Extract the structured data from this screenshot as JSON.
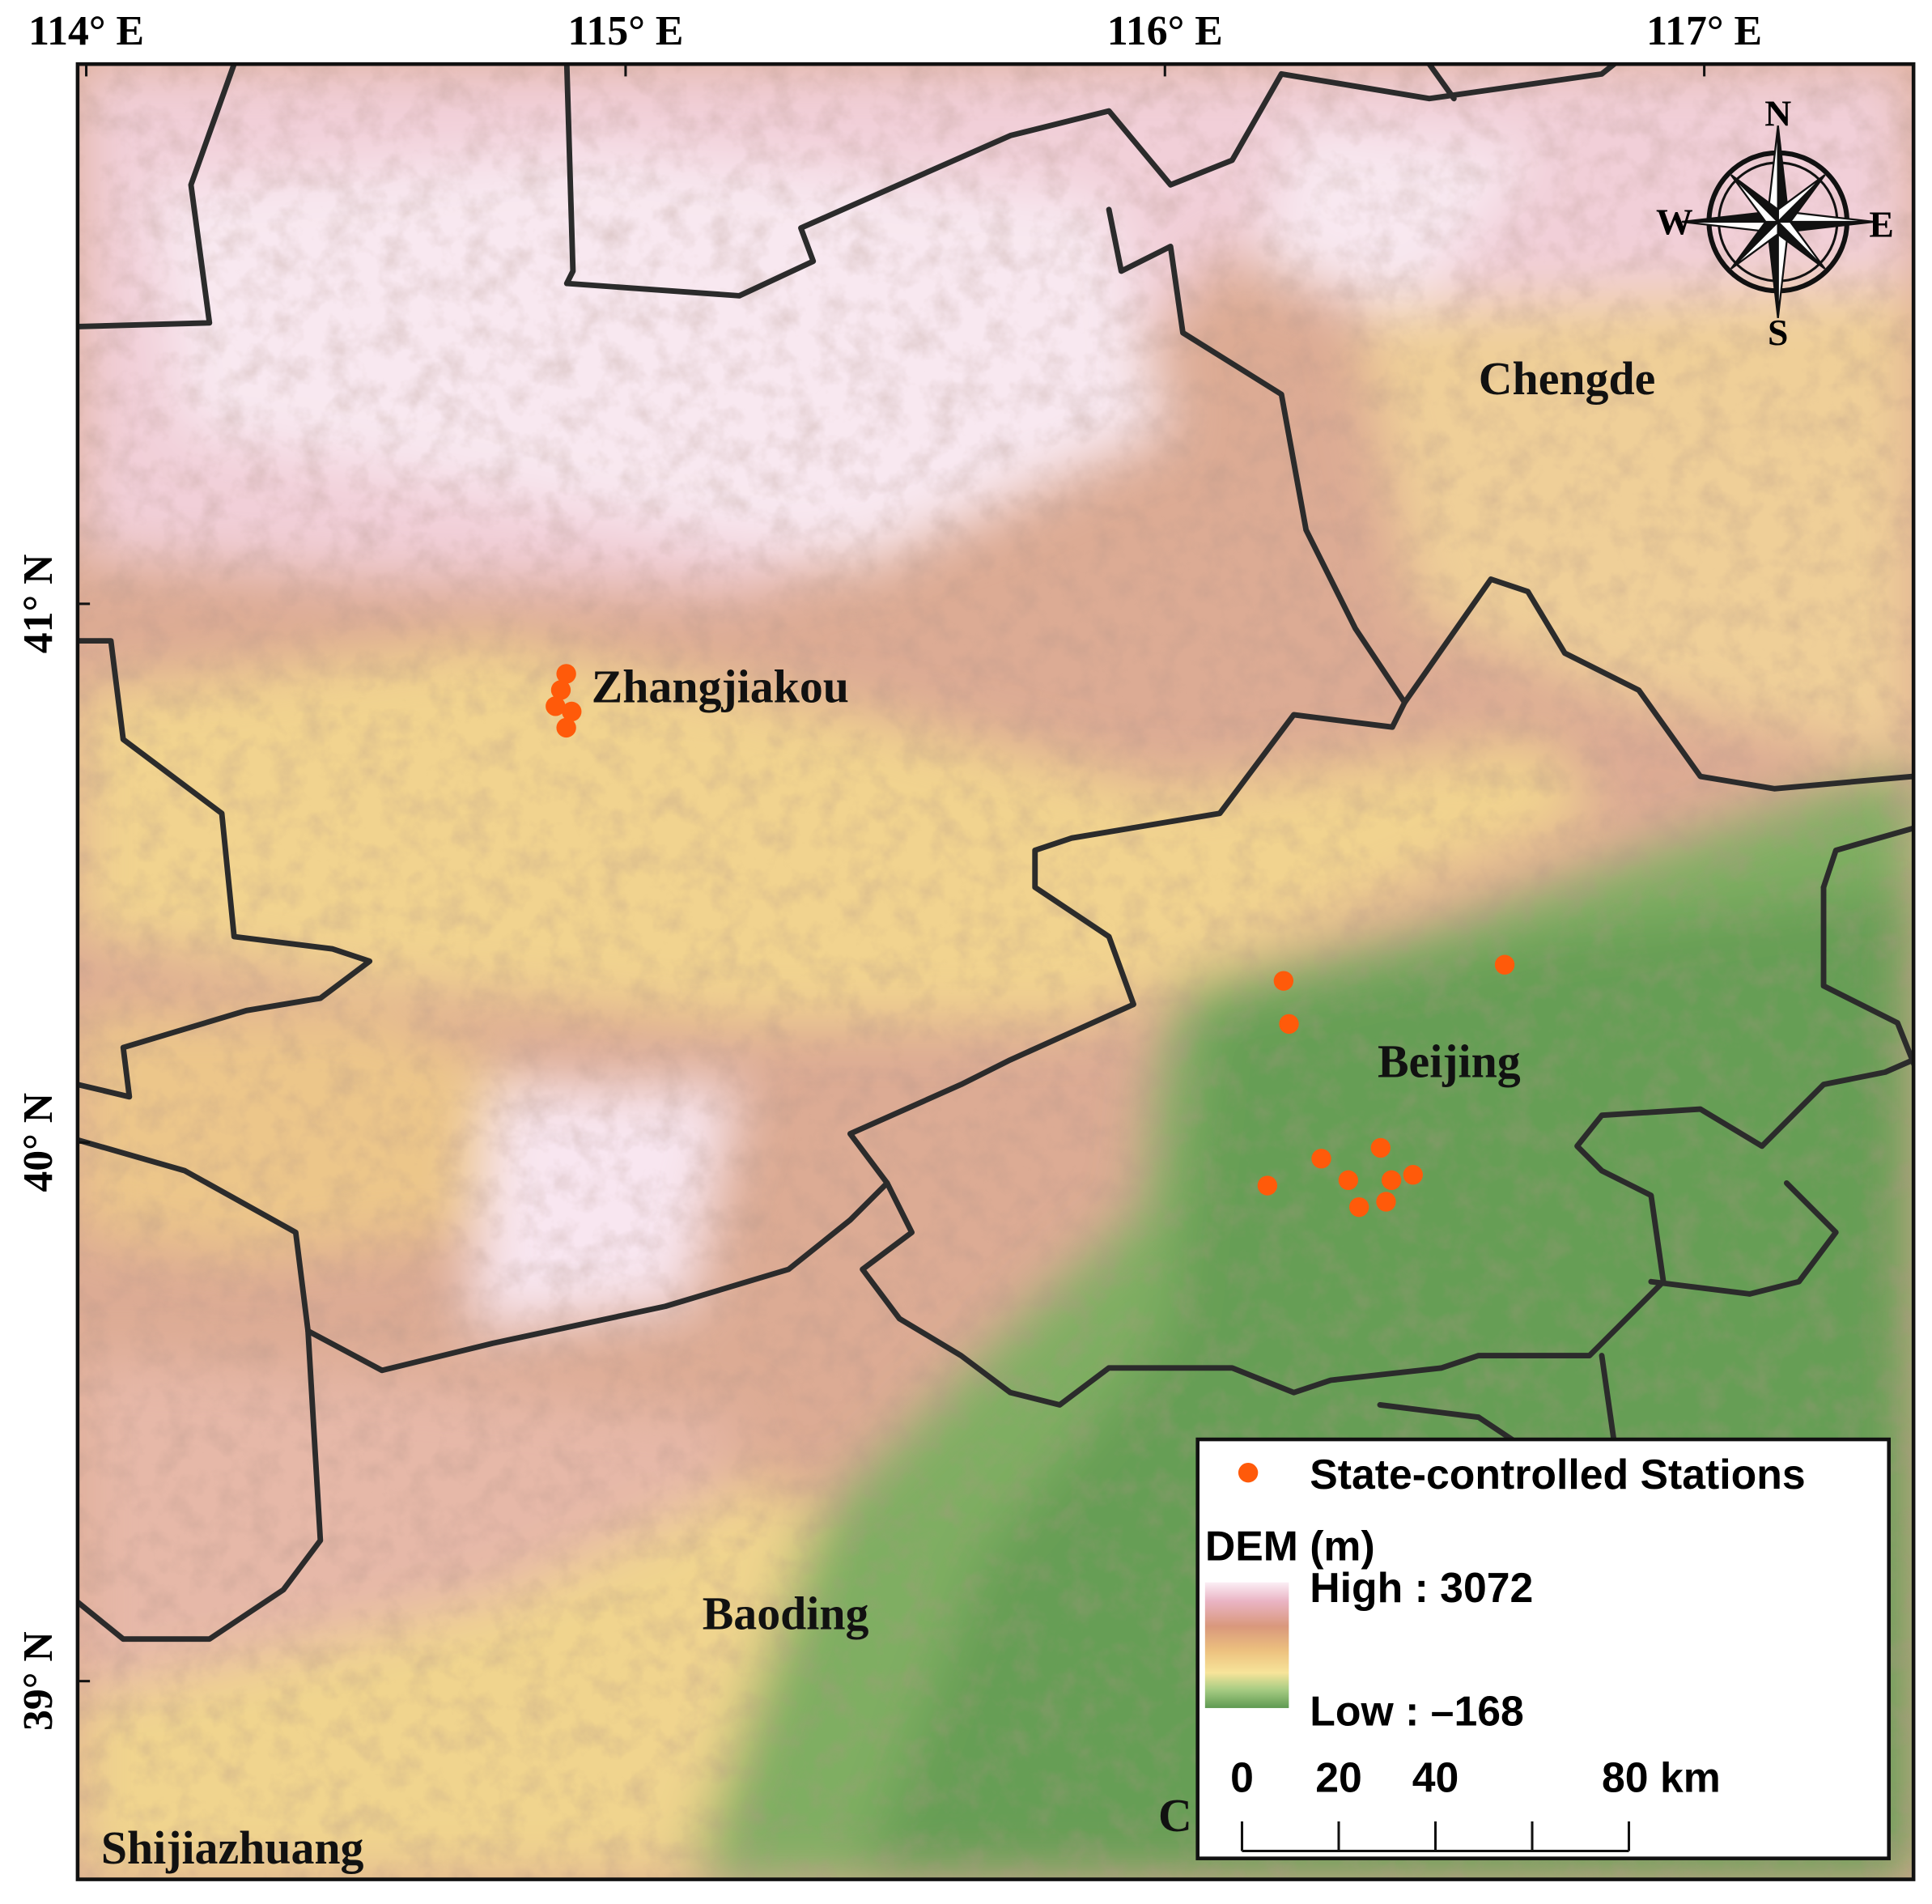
{
  "map": {
    "xlim": [
      113.984,
      117.388
    ],
    "ylim": [
      38.632,
      42.002
    ],
    "xticks": [
      {
        "value": 114,
        "label": "114° E"
      },
      {
        "value": 115,
        "label": "115° E"
      },
      {
        "value": 116,
        "label": "116° E"
      },
      {
        "value": 117,
        "label": "117° E"
      }
    ],
    "yticks": [
      {
        "value": 39,
        "label": "39° N"
      },
      {
        "value": 40,
        "label": "40° N"
      },
      {
        "value": 41,
        "label": "41° N"
      }
    ],
    "cities": [
      "Zhangjiakou",
      "Chengde",
      "Beijing",
      "Baoding",
      "Shijiazhuang",
      "C"
    ],
    "compass": [
      "N",
      "E",
      "S",
      "W"
    ],
    "stations": {
      "name": "State-controlled Stations",
      "color": "#ff5a0a",
      "lon": [
        114.89,
        114.88,
        114.87,
        114.9,
        114.89,
        116.22,
        116.23,
        116.63,
        116.19,
        116.29,
        116.34,
        116.4,
        116.42,
        116.46,
        116.36,
        116.41
      ],
      "lat": [
        40.87,
        40.84,
        40.81,
        40.8,
        40.77,
        40.3,
        40.22,
        40.33,
        39.92,
        39.97,
        39.93,
        39.99,
        39.93,
        39.94,
        39.88,
        39.89
      ]
    },
    "dem_legend": {
      "title": "DEM (m)",
      "high": {
        "value": 3072,
        "label": "High : 3072"
      },
      "low": {
        "value": -168,
        "label": "Low : –168"
      }
    },
    "scale_bar": {
      "ticks": [
        0,
        20,
        40,
        {
          "value": 60,
          "label": null
        },
        {
          "value": 80,
          "label": "80 km"
        }
      ]
    }
  }
}
